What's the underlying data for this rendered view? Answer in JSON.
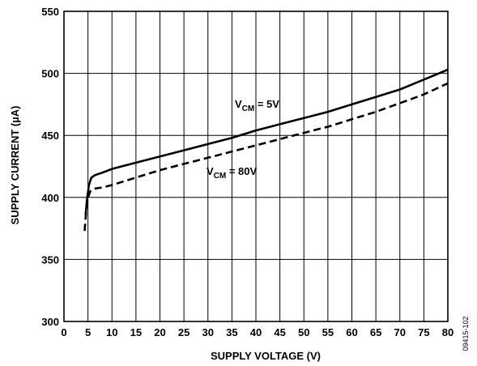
{
  "chart_data": {
    "type": "line",
    "title": "",
    "xlabel": "SUPPLY VOLTAGE (V)",
    "ylabel": "SUPPLY CURRENT (µA)",
    "xlim": [
      0,
      80
    ],
    "ylim": [
      300,
      550
    ],
    "x_ticks": [
      0,
      5,
      10,
      15,
      20,
      25,
      30,
      35,
      40,
      45,
      50,
      55,
      60,
      65,
      70,
      75,
      80
    ],
    "y_ticks": [
      300,
      350,
      400,
      450,
      500,
      550
    ],
    "grid": true,
    "legend": "none",
    "series": [
      {
        "name": "VCM = 5V",
        "label_main": "V",
        "label_sub": "CM",
        "label_tail": " = 5V",
        "style": "solid",
        "x": [
          4.5,
          4.8,
          5.2,
          5.7,
          6.5,
          8,
          10,
          12,
          15,
          20,
          25,
          30,
          35,
          40,
          45,
          50,
          55,
          60,
          65,
          70,
          75,
          80
        ],
        "y": [
          386,
          398,
          410,
          416,
          418,
          420,
          423,
          425,
          428,
          433,
          438,
          443,
          448,
          454,
          459,
          464,
          469,
          475,
          481,
          487,
          495,
          503
        ]
      },
      {
        "name": "VCM = 80V",
        "label_main": "V",
        "label_sub": "CM",
        "label_tail": " = 80V",
        "style": "dashed",
        "x": [
          4.3,
          4.6,
          5.0,
          5.5,
          6.2,
          8,
          10,
          15,
          20,
          25,
          30,
          35,
          40,
          45,
          50,
          55,
          60,
          65,
          70,
          75,
          80
        ],
        "y": [
          373,
          388,
          400,
          405,
          407,
          408,
          410,
          416,
          422,
          427,
          432,
          437,
          442,
          447,
          452,
          457,
          463,
          469,
          476,
          483,
          492
        ]
      }
    ]
  },
  "figure_id": "09415-102"
}
